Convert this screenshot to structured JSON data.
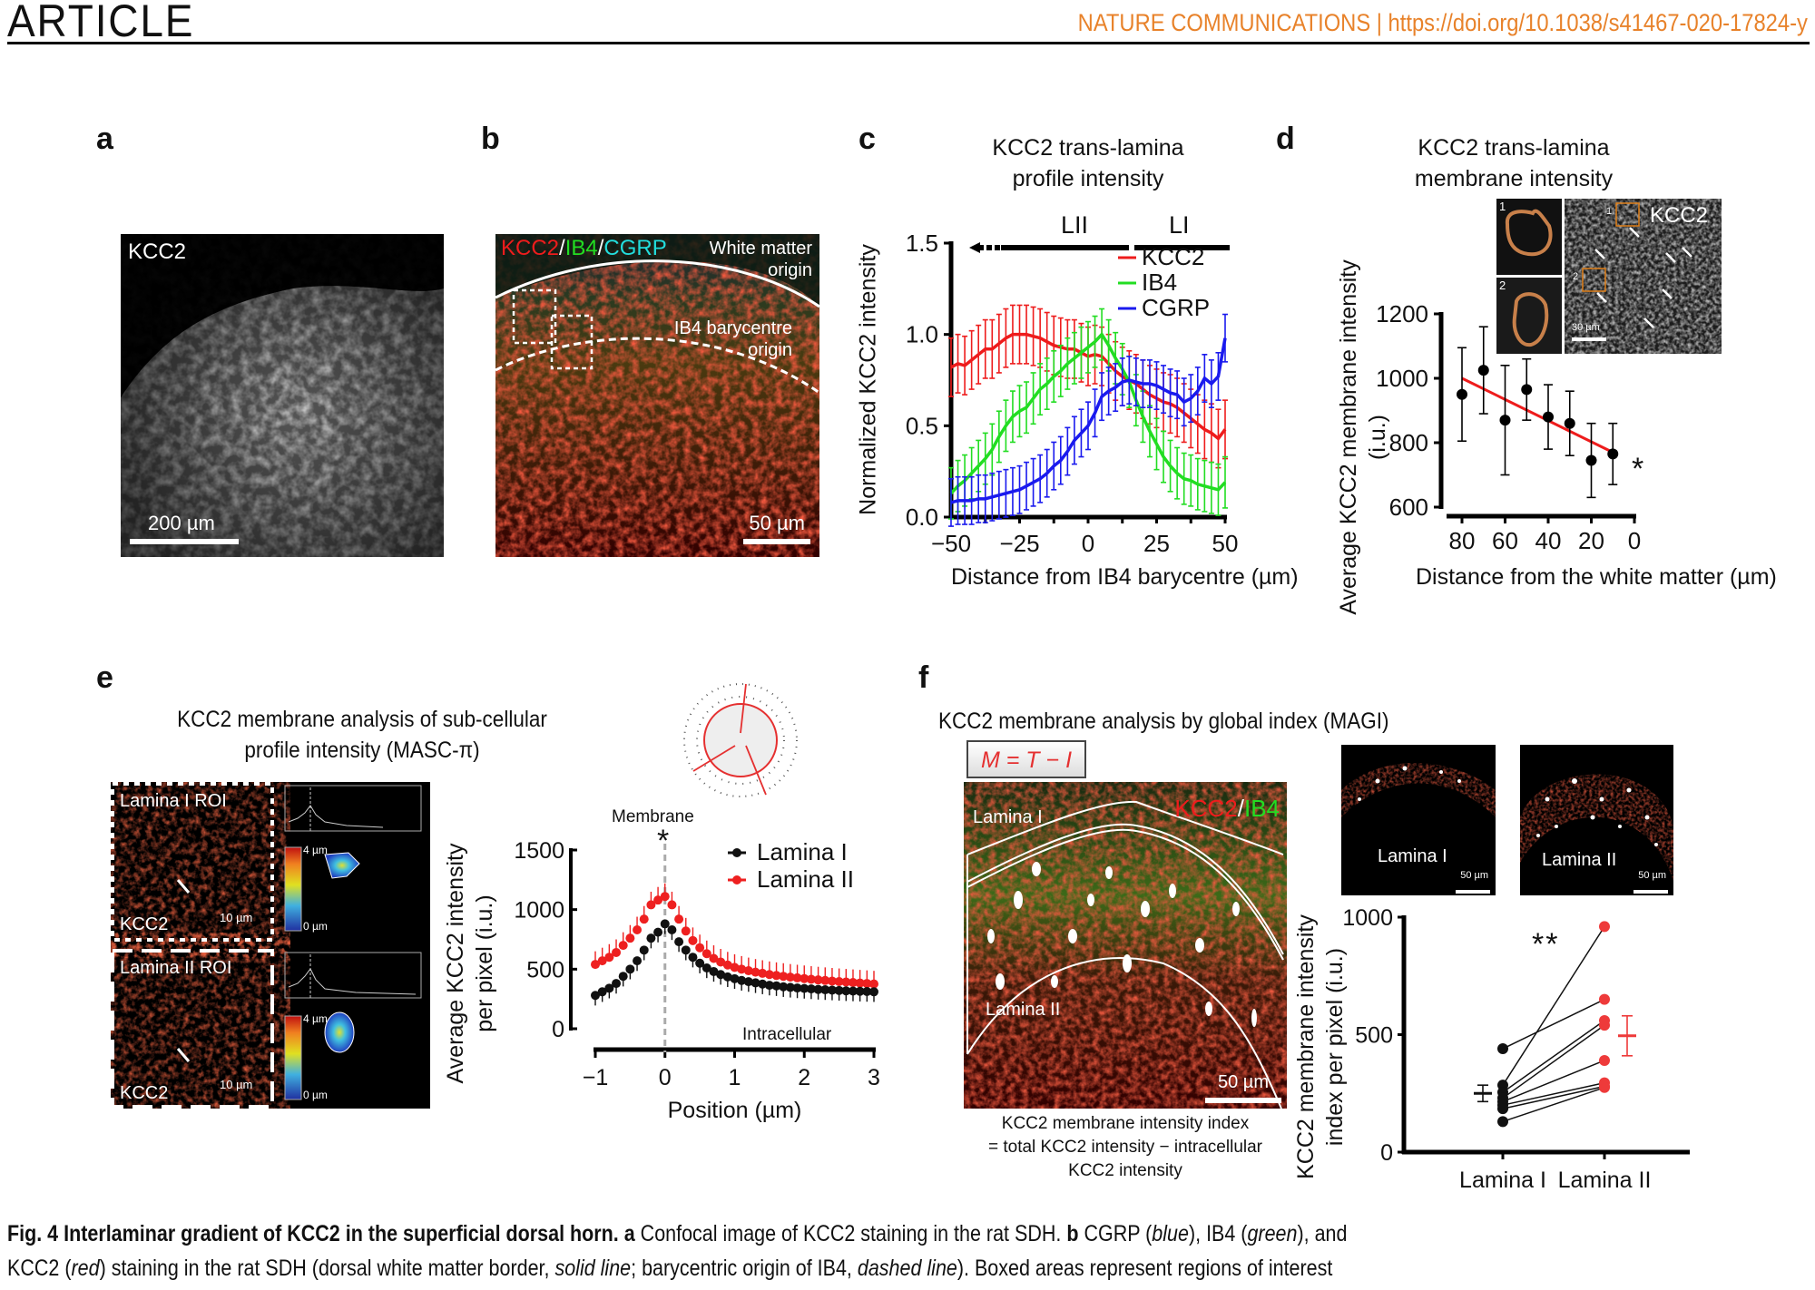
{
  "header": {
    "article": "ARTICLE",
    "journal": "NATURE COMMUNICATIONS | https://doi.org/10.1038/s41467-020-17824-y"
  },
  "panels": {
    "a": {
      "label": "a",
      "image_label": "KCC2",
      "scale": "200 µm"
    },
    "b": {
      "label": "b",
      "stain_kcc2": "KCC2",
      "stain_ib4": "IB4",
      "stain_cgrp": "CGRP",
      "slash": "/",
      "wm_line1": "White matter",
      "wm_line2": "origin",
      "ib4_line1": "IB4 barycentre",
      "ib4_line2": "origin",
      "scale": "50 µm"
    },
    "c": {
      "label": "c",
      "title_line1": "KCC2 trans-lamina",
      "title_line2": "profile intensity",
      "lii": "LII",
      "li": "LI"
    },
    "d": {
      "label": "d",
      "title_line1": "KCC2 trans-lamina",
      "title_line2": "membrane intensity",
      "inset_kcc2": "KCC2",
      "inset_1": "1",
      "inset_2": "2",
      "inset_scale": "30 µm",
      "significance": "*"
    },
    "e": {
      "label": "e",
      "title_line1": "KCC2 membrane analysis of sub-cellular",
      "title_line2": "profile intensity (MASC-π)",
      "roi1": "Lamina I ROI",
      "roi2": "Lamina II ROI",
      "kcc2": "KCC2",
      "scale": "10 µm",
      "cb_max": "4 µm",
      "cb_min": "0 µm",
      "membrane": "Membrane",
      "intracellular": "Intracellular",
      "significance": "*"
    },
    "f": {
      "label": "f",
      "title": "KCC2 membrane analysis by global index (MAGI)",
      "formula": "M = T − I",
      "stain_kcc2": "KCC2",
      "stain_ib4": "IB4",
      "slash": "/",
      "lamina1": "Lamina I",
      "lamina2": "Lamina II",
      "scale": "50 µm",
      "caption_line1": "KCC2 membrane intensity index",
      "caption_line2": "= total KCC2 intensity − intracellular",
      "caption_line3": "KCC2 intensity",
      "thumb1": "Lamina I",
      "thumb2": "Lamina II",
      "significance": "**"
    }
  },
  "caption": {
    "line1_bold": "Fig. 4 Interlaminar gradient of KCC2 in the superficial dorsal horn. a",
    "line1_a": " Confocal image of KCC2 staining in the rat SDH. ",
    "line1_b_bold": "b",
    "line1_b": " CGRP (",
    "blue": "blue",
    "sep1": "), IB4 (",
    "green": "green",
    "sep2": "), and",
    "line2_a": "KCC2 (",
    "red": "red",
    "line2_b": ") staining in the rat SDH (dorsal white matter border, ",
    "solid": "solid line",
    "line2_c": "; barycentric origin of IB4, ",
    "dashed": "dashed line",
    "line2_d": "). Boxed areas represent regions of interest"
  },
  "colors": {
    "kcc2": "#ee1c1c",
    "ib4": "#22dd22",
    "cgrp": "#1a1aee",
    "journal": "#e8822a",
    "lamina2": "#ee3333"
  },
  "chart_data": [
    {
      "id": "c",
      "type": "line",
      "title": "KCC2 trans-lamina profile intensity",
      "xlabel": "Distance from IB4 barycentre (µm)",
      "ylabel": "Normalized KCC2 intensity",
      "xlim": [
        -50,
        50
      ],
      "ylim": [
        0,
        1.5
      ],
      "xticks": [
        -50,
        -25,
        0,
        25,
        50
      ],
      "yticks": [
        0.0,
        0.5,
        1.0,
        1.5
      ],
      "xtick_labels": [
        "−50",
        "−25",
        "0",
        "25",
        "50"
      ],
      "ytick_labels": [
        "0.0",
        "0.5",
        "1.0",
        "1.5"
      ],
      "legend": "top-right",
      "x": [
        -50,
        -47.5,
        -45,
        -42.5,
        -40,
        -37.5,
        -35,
        -32.5,
        -30,
        -27.5,
        -25,
        -22.5,
        -20,
        -17.5,
        -15,
        -12.5,
        -10,
        -7.5,
        -5,
        -2.5,
        0,
        2.5,
        5,
        7.5,
        10,
        12.5,
        15,
        17.5,
        20,
        22.5,
        25,
        27.5,
        30,
        32.5,
        35,
        37.5,
        40,
        42.5,
        45,
        47.5,
        50
      ],
      "series": [
        {
          "name": "KCC2",
          "color": "#ee1c1c",
          "err": 0.16,
          "values": [
            0.82,
            0.84,
            0.83,
            0.86,
            0.89,
            0.92,
            0.92,
            0.95,
            0.98,
            1.0,
            1.0,
            1.0,
            0.99,
            0.98,
            0.96,
            0.94,
            0.93,
            0.92,
            0.92,
            0.9,
            0.88,
            0.89,
            0.88,
            0.84,
            0.8,
            0.77,
            0.75,
            0.73,
            0.7,
            0.67,
            0.65,
            0.63,
            0.62,
            0.6,
            0.57,
            0.54,
            0.51,
            0.48,
            0.46,
            0.43,
            0.48
          ]
        },
        {
          "name": "IB4",
          "color": "#22dd22",
          "err": 0.14,
          "values": [
            0.13,
            0.17,
            0.2,
            0.24,
            0.28,
            0.32,
            0.37,
            0.44,
            0.5,
            0.55,
            0.58,
            0.6,
            0.65,
            0.7,
            0.73,
            0.77,
            0.8,
            0.84,
            0.87,
            0.9,
            0.93,
            0.96,
            1.0,
            0.94,
            0.87,
            0.81,
            0.74,
            0.64,
            0.55,
            0.47,
            0.4,
            0.33,
            0.28,
            0.24,
            0.21,
            0.2,
            0.18,
            0.17,
            0.16,
            0.15,
            0.19
          ]
        },
        {
          "name": "CGRP",
          "color": "#1a1aee",
          "err": 0.13,
          "values": [
            0.08,
            0.09,
            0.09,
            0.09,
            0.1,
            0.1,
            0.11,
            0.12,
            0.13,
            0.14,
            0.15,
            0.17,
            0.19,
            0.21,
            0.24,
            0.28,
            0.31,
            0.36,
            0.42,
            0.46,
            0.5,
            0.57,
            0.66,
            0.69,
            0.71,
            0.74,
            0.75,
            0.74,
            0.73,
            0.73,
            0.72,
            0.7,
            0.68,
            0.67,
            0.63,
            0.65,
            0.69,
            0.76,
            0.73,
            0.77,
            0.98
          ]
        }
      ]
    },
    {
      "id": "d",
      "type": "scatter",
      "title": "KCC2 trans-lamina membrane intensity",
      "xlabel": "Distance from the white matter (µm)",
      "ylabel": "Average KCC2 membrane intensity (i.u.)",
      "xlim": [
        90,
        0
      ],
      "ylim": [
        600,
        1200
      ],
      "xticks": [
        80,
        60,
        40,
        20,
        0
      ],
      "yticks": [
        600,
        800,
        1000,
        1200
      ],
      "x": [
        80,
        70,
        60,
        50,
        40,
        30,
        20,
        10
      ],
      "values": [
        950,
        1025,
        870,
        965,
        880,
        860,
        745,
        765
      ],
      "err": [
        145,
        135,
        170,
        95,
        100,
        100,
        115,
        95
      ],
      "fit": {
        "x": [
          80,
          10
        ],
        "y": [
          1000,
          770
        ],
        "color": "#ee1c1c"
      }
    },
    {
      "id": "e",
      "type": "line",
      "xlabel": "Position (µm)",
      "ylabel": "Average KCC2 intensity per pixel (i.u.)",
      "xlim": [
        -1,
        3
      ],
      "ylim": [
        0,
        1500
      ],
      "xticks": [
        -1,
        0,
        1,
        2,
        3
      ],
      "xtick_labels": [
        "−1",
        "0",
        "1",
        "2",
        "3"
      ],
      "yticks": [
        0,
        500,
        1000,
        1500
      ],
      "legend": "top-right",
      "x": [
        -1,
        -0.9,
        -0.8,
        -0.7,
        -0.6,
        -0.5,
        -0.4,
        -0.3,
        -0.2,
        -0.1,
        0,
        0.1,
        0.2,
        0.3,
        0.4,
        0.5,
        0.6,
        0.7,
        0.8,
        0.9,
        1,
        1.1,
        1.2,
        1.3,
        1.4,
        1.5,
        1.6,
        1.7,
        1.8,
        1.9,
        2,
        2.1,
        2.2,
        2.3,
        2.4,
        2.5,
        2.6,
        2.7,
        2.8,
        2.9,
        3
      ],
      "series": [
        {
          "name": "Lamina I",
          "color": "#111111",
          "err": 85,
          "values": [
            280,
            310,
            340,
            380,
            440,
            500,
            570,
            660,
            760,
            810,
            880,
            830,
            730,
            660,
            600,
            550,
            510,
            480,
            455,
            435,
            420,
            405,
            395,
            385,
            375,
            365,
            360,
            352,
            347,
            342,
            338,
            334,
            330,
            327,
            324,
            321,
            318,
            316,
            314,
            312,
            310
          ]
        },
        {
          "name": "Lamina II",
          "color": "#ee2020",
          "err": 110,
          "values": [
            540,
            570,
            600,
            640,
            700,
            760,
            830,
            920,
            1040,
            1080,
            1110,
            1040,
            920,
            820,
            740,
            680,
            630,
            590,
            560,
            535,
            515,
            500,
            487,
            475,
            465,
            455,
            447,
            440,
            433,
            427,
            421,
            415,
            410,
            405,
            400,
            396,
            392,
            388,
            384,
            380,
            376
          ]
        }
      ]
    },
    {
      "id": "f",
      "type": "scatter",
      "ylabel": "KCC2 membrane intensity index per pixel (i.u.)",
      "categories": [
        "Lamina I",
        "Lamina II"
      ],
      "ylim": [
        0,
        1000
      ],
      "yticks": [
        0,
        500,
        1000
      ],
      "pairs": [
        [
          285,
          960
        ],
        [
          440,
          650
        ],
        [
          255,
          560
        ],
        [
          230,
          540
        ],
        [
          215,
          390
        ],
        [
          200,
          295
        ],
        [
          185,
          280
        ],
        [
          130,
          275
        ]
      ],
      "mean": [
        250,
        495
      ],
      "sem": [
        35,
        85
      ],
      "colors": [
        "#111111",
        "#ee3a3a"
      ]
    }
  ]
}
